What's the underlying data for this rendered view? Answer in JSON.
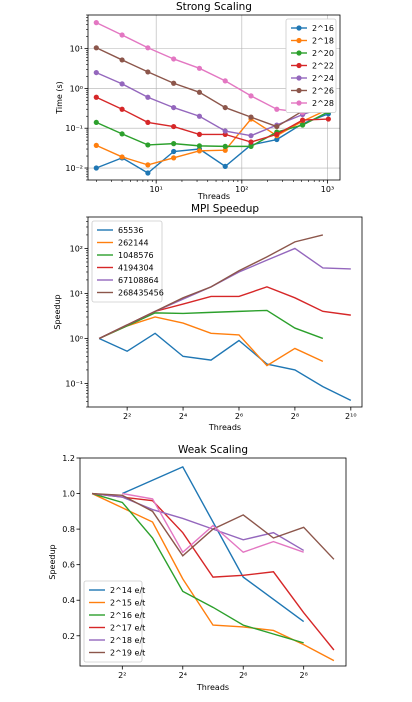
{
  "colors": [
    "#1f77b4",
    "#ff7f0e",
    "#2ca02c",
    "#d62728",
    "#9467bd",
    "#8c564b",
    "#e377c2"
  ],
  "chart_data": [
    {
      "type": "line",
      "title": "Strong Scaling",
      "xlabel": "Threads",
      "ylabel": "Time (s)",
      "xscale": "log",
      "yscale": "log",
      "xlim": [
        1.6,
        1400
      ],
      "ylim": [
        0.005,
        70
      ],
      "grid": true,
      "markers": true,
      "legend": "top-right",
      "xticks": [
        {
          "v": 10,
          "label": "10¹"
        },
        {
          "v": 100,
          "label": "10²"
        },
        {
          "v": 1000,
          "label": "10³"
        }
      ],
      "yticks": [
        {
          "v": 0.01,
          "label": "10⁻²"
        },
        {
          "v": 0.1,
          "label": "10⁻¹"
        },
        {
          "v": 1,
          "label": "10⁰"
        },
        {
          "v": 10,
          "label": "10¹"
        }
      ],
      "x": [
        2,
        4,
        8,
        16,
        32,
        64,
        128,
        256,
        512,
        1024
      ],
      "series": [
        {
          "name": "2^16",
          "values": [
            0.01,
            0.018,
            0.0075,
            0.026,
            0.03,
            0.011,
            0.038,
            0.052,
            0.13,
            0.23
          ]
        },
        {
          "name": "2^18",
          "values": [
            0.037,
            0.019,
            0.012,
            0.018,
            0.027,
            0.028,
            0.17,
            0.065,
            0.15,
            0.3
          ]
        },
        {
          "name": "2^20",
          "values": [
            0.14,
            0.072,
            0.038,
            0.041,
            0.036,
            0.035,
            0.035,
            0.08,
            0.12,
            0.26
          ]
        },
        {
          "name": "2^22",
          "values": [
            0.6,
            0.3,
            0.14,
            0.11,
            0.07,
            0.07,
            0.045,
            0.07,
            0.16,
            0.17
          ]
        },
        {
          "name": "2^24",
          "values": [
            2.5,
            1.3,
            0.6,
            0.33,
            0.2,
            0.085,
            0.065,
            0.12,
            0.22,
            0.37
          ]
        },
        {
          "name": "2^26",
          "values": [
            10.5,
            5.2,
            2.6,
            1.35,
            0.8,
            0.33,
            0.19,
            0.11,
            0.27,
            0.32
          ]
        },
        {
          "name": "2^28",
          "values": [
            45,
            22,
            10.5,
            5.5,
            3.2,
            1.55,
            0.65,
            0.3,
            0.25,
            0.3
          ]
        }
      ]
    },
    {
      "type": "line",
      "title": "MPI Speedup",
      "xlabel": "Threads",
      "ylabel": "Speedup",
      "xscale": "log2",
      "yscale": "log",
      "xlim": [
        0.6,
        10.4
      ],
      "ylim": [
        0.03,
        500
      ],
      "grid": false,
      "markers": false,
      "legend": "top-left",
      "xticks": [
        {
          "v": 2,
          "label": "2²"
        },
        {
          "v": 4,
          "label": "2⁴"
        },
        {
          "v": 6,
          "label": "2⁶"
        },
        {
          "v": 8,
          "label": "2⁸"
        },
        {
          "v": 10,
          "label": "2¹⁰"
        }
      ],
      "yticks": [
        {
          "v": 0.1,
          "label": "10⁻¹"
        },
        {
          "v": 1,
          "label": "10⁰"
        },
        {
          "v": 10,
          "label": "10¹"
        },
        {
          "v": 100,
          "label": "10²"
        }
      ],
      "series": [
        {
          "name": "65536",
          "x": [
            1,
            2,
            3,
            4,
            5,
            6,
            7,
            8,
            9,
            10
          ],
          "values": [
            1.0,
            0.52,
            1.3,
            0.4,
            0.33,
            0.9,
            0.27,
            0.2,
            0.085,
            0.042
          ]
        },
        {
          "name": "262144",
          "x": [
            1,
            2,
            3,
            4,
            5,
            6,
            7,
            8,
            9
          ],
          "values": [
            1.0,
            1.9,
            3.0,
            2.2,
            1.3,
            1.2,
            0.25,
            0.6,
            0.31
          ]
        },
        {
          "name": "1048576",
          "x": [
            1,
            2,
            3,
            4,
            5,
            6,
            7,
            8,
            9
          ],
          "values": [
            1.0,
            1.9,
            3.7,
            3.6,
            3.8,
            4.0,
            4.2,
            1.7,
            1.0
          ]
        },
        {
          "name": "4194304",
          "x": [
            1,
            2,
            3,
            4,
            5,
            6,
            7,
            8,
            9,
            10
          ],
          "values": [
            1.0,
            2.0,
            4.0,
            5.8,
            8.6,
            8.6,
            14,
            8.0,
            4.0,
            3.3
          ]
        },
        {
          "name": "67108864",
          "x": [
            1,
            2,
            3,
            4,
            5,
            6,
            7,
            8,
            9,
            10
          ],
          "values": [
            1.0,
            2.0,
            4.0,
            7.5,
            14,
            30,
            55,
            100,
            37,
            35
          ]
        },
        {
          "name": "268435456",
          "x": [
            1,
            2,
            3,
            4,
            5,
            6,
            7,
            8,
            9
          ],
          "values": [
            1.0,
            2.0,
            4.0,
            8.0,
            14,
            32,
            65,
            140,
            200
          ]
        }
      ]
    },
    {
      "type": "line",
      "title": "Weak Scaling",
      "xlabel": "Threads",
      "ylabel": "Speedup",
      "xscale": "log2",
      "yscale": "linear",
      "xlim": [
        0.6,
        9.4
      ],
      "ylim": [
        0.03,
        1.2
      ],
      "grid": false,
      "markers": false,
      "legend": "bottom-left",
      "xticks": [
        {
          "v": 2,
          "label": "2²"
        },
        {
          "v": 4,
          "label": "2⁴"
        },
        {
          "v": 6,
          "label": "2⁶"
        },
        {
          "v": 8,
          "label": "2⁸"
        }
      ],
      "yticks": [
        {
          "v": 0.2,
          "label": "0.2"
        },
        {
          "v": 0.4,
          "label": "0.4"
        },
        {
          "v": 0.6,
          "label": "0.6"
        },
        {
          "v": 0.8,
          "label": "0.8"
        },
        {
          "v": 1.0,
          "label": "1.0"
        },
        {
          "v": 1.2,
          "label": "1.2"
        }
      ],
      "series": [
        {
          "name": "2^14 e/t",
          "x": [
            2,
            4,
            6,
            8
          ],
          "values": [
            1.0,
            1.15,
            0.53,
            0.28
          ]
        },
        {
          "name": "2^15 e/t",
          "x": [
            1,
            2,
            3,
            4,
            5,
            6,
            7,
            8,
            9
          ],
          "values": [
            1.0,
            0.92,
            0.84,
            0.52,
            0.26,
            0.25,
            0.23,
            0.15,
            0.06
          ]
        },
        {
          "name": "2^16 e/t",
          "x": [
            1,
            2,
            3,
            4,
            5,
            6,
            7,
            8
          ],
          "values": [
            1.0,
            0.95,
            0.75,
            0.45,
            0.36,
            0.26,
            0.21,
            0.16
          ]
        },
        {
          "name": "2^17 e/t",
          "x": [
            1,
            2,
            3,
            4,
            5,
            6,
            7,
            8,
            9
          ],
          "values": [
            1.0,
            0.98,
            0.96,
            0.78,
            0.53,
            0.54,
            0.56,
            0.33,
            0.12
          ]
        },
        {
          "name": "2^18 e/t",
          "x": [
            1,
            2,
            3,
            4,
            5,
            6,
            7,
            8
          ],
          "values": [
            1.0,
            0.98,
            0.91,
            0.86,
            0.8,
            0.74,
            0.78,
            0.68
          ]
        },
        {
          "name": "2^19 e/t",
          "x": [
            1,
            2,
            3,
            4,
            5,
            6,
            7,
            8,
            9
          ],
          "values": [
            1.0,
            0.99,
            0.9,
            0.65,
            0.8,
            0.88,
            0.75,
            0.81,
            0.63
          ]
        },
        {
          "name": "",
          "x": [
            2,
            3,
            4,
            5,
            6,
            7,
            8
          ],
          "values": [
            1.0,
            0.97,
            0.67,
            0.82,
            0.67,
            0.73,
            0.67
          ]
        }
      ]
    }
  ]
}
